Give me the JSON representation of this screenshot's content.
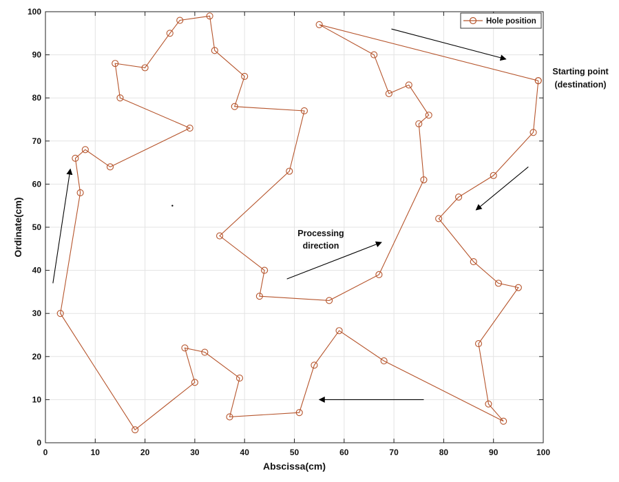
{
  "chart_data": {
    "type": "line",
    "xlabel": "Abscissa(cm)",
    "ylabel": "Ordinate(cm)",
    "xlim": [
      0,
      100
    ],
    "ylim": [
      0,
      100
    ],
    "x_ticks": [
      0,
      10,
      20,
      30,
      40,
      50,
      60,
      70,
      80,
      90,
      100
    ],
    "y_ticks": [
      0,
      10,
      20,
      30,
      40,
      50,
      60,
      70,
      80,
      90,
      100
    ],
    "grid": true,
    "legend_position": "top-right",
    "series": [
      {
        "name": "Hole position",
        "color": "#b5532a",
        "marker": "circle",
        "points": [
          [
            99,
            84
          ],
          [
            55,
            97
          ],
          [
            66,
            90
          ],
          [
            69,
            81
          ],
          [
            73,
            83
          ],
          [
            77,
            76
          ],
          [
            75,
            74
          ],
          [
            76,
            61
          ],
          [
            67,
            39
          ],
          [
            57,
            33
          ],
          [
            43,
            34
          ],
          [
            44,
            40
          ],
          [
            35,
            48
          ],
          [
            49,
            63
          ],
          [
            52,
            77
          ],
          [
            38,
            78
          ],
          [
            40,
            85
          ],
          [
            34,
            91
          ],
          [
            33,
            99
          ],
          [
            27,
            98
          ],
          [
            25,
            95
          ],
          [
            20,
            87
          ],
          [
            14,
            88
          ],
          [
            15,
            80
          ],
          [
            29,
            73
          ],
          [
            13,
            64
          ],
          [
            8,
            68
          ],
          [
            6,
            66
          ],
          [
            7,
            58
          ],
          [
            3,
            30
          ],
          [
            18,
            3
          ],
          [
            30,
            14
          ],
          [
            28,
            22
          ],
          [
            32,
            21
          ],
          [
            39,
            15
          ],
          [
            37,
            6
          ],
          [
            51,
            7
          ],
          [
            54,
            18
          ],
          [
            59,
            26
          ],
          [
            68,
            19
          ],
          [
            92,
            5
          ],
          [
            89,
            9
          ],
          [
            87,
            23
          ],
          [
            95,
            36
          ],
          [
            91,
            37
          ],
          [
            86,
            42
          ],
          [
            79,
            52
          ],
          [
            83,
            57
          ],
          [
            90,
            62
          ],
          [
            98,
            72
          ],
          [
            99,
            84
          ]
        ]
      }
    ],
    "annotations": {
      "start": [
        "Starting point",
        "(destination)"
      ],
      "processing": [
        "Processing",
        "direction"
      ]
    },
    "arrows": [
      {
        "from": [
          1.5,
          37
        ],
        "to": [
          5,
          63.5
        ]
      },
      {
        "from": [
          69.5,
          96
        ],
        "to": [
          92.5,
          89
        ]
      },
      {
        "from": [
          97,
          64
        ],
        "to": [
          86.5,
          54
        ]
      },
      {
        "from": [
          48.5,
          38
        ],
        "to": [
          67.5,
          46.5
        ]
      },
      {
        "from": [
          76,
          10
        ],
        "to": [
          55,
          10
        ]
      }
    ],
    "stray_marks": [
      {
        "x": 25.5,
        "y": 55
      }
    ]
  }
}
